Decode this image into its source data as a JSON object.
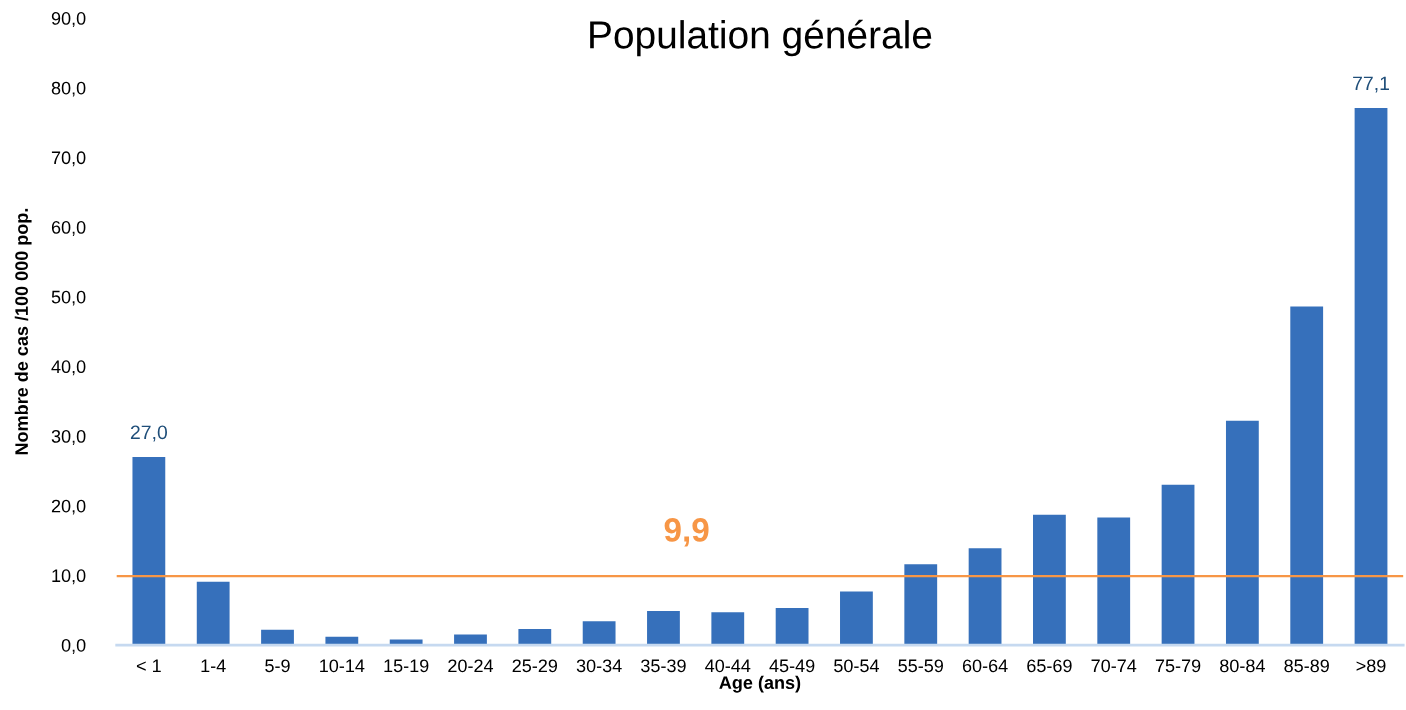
{
  "chart_data": {
    "type": "bar",
    "title": "Population générale",
    "xlabel": "Age (ans)",
    "ylabel": "Nombre de cas /100 000 pop.",
    "categories": [
      "< 1",
      "1-4",
      "5-9",
      "10-14",
      "15-19",
      "20-24",
      "25-29",
      "30-34",
      "35-39",
      "40-44",
      "45-49",
      "50-54",
      "55-59",
      "60-64",
      "65-69",
      "70-74",
      "75-79",
      "80-84",
      "85-89",
      ">89"
    ],
    "values": [
      27.0,
      9.1,
      2.2,
      1.2,
      0.8,
      1.5,
      2.3,
      3.4,
      4.9,
      4.7,
      5.3,
      7.7,
      11.6,
      13.9,
      18.7,
      18.3,
      23.0,
      32.2,
      48.6,
      77.1
    ],
    "value_labels": [
      "27,0",
      null,
      null,
      null,
      null,
      null,
      null,
      null,
      null,
      null,
      null,
      null,
      null,
      null,
      null,
      null,
      null,
      null,
      null,
      "77,1"
    ],
    "color": "#3670bb",
    "ylim": [
      0,
      90
    ],
    "yticks": [
      {
        "value": 0,
        "label": "0,0"
      },
      {
        "value": 10,
        "label": "10,0"
      },
      {
        "value": 20,
        "label": "20,0"
      },
      {
        "value": 30,
        "label": "30,0"
      },
      {
        "value": 40,
        "label": "40,0"
      },
      {
        "value": 50,
        "label": "50,0"
      },
      {
        "value": 60,
        "label": "60,0"
      },
      {
        "value": 70,
        "label": "70,0"
      },
      {
        "value": 80,
        "label": "80,0"
      },
      {
        "value": 90,
        "label": "90,0"
      }
    ],
    "ref_lines": [
      {
        "axis": "y",
        "value": 9.9,
        "label": "9,9",
        "color": "#f79646"
      }
    ],
    "grid": false,
    "legend": false
  }
}
